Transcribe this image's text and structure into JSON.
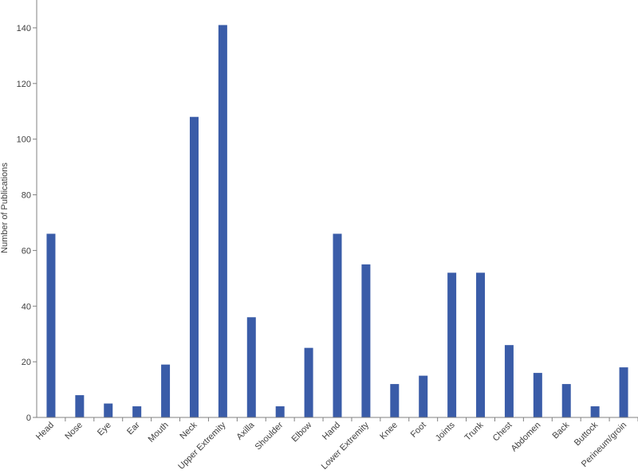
{
  "chart_data": {
    "type": "bar",
    "title": "",
    "xlabel": "",
    "ylabel": "Number of Publications",
    "ylim": [
      0,
      150
    ],
    "yticks": [
      0,
      20,
      40,
      60,
      80,
      100,
      120,
      140
    ],
    "grid": false,
    "legend": "none",
    "bar_color": "#3a5ca8",
    "axis_color": "#808080",
    "categories": [
      "Head",
      "Nose",
      "Eye",
      "Ear",
      "Mouth",
      "Neck",
      "Upper Extremity",
      "Axilla",
      "Shoulder",
      "Elbow",
      "Hand",
      "Lower Extremity",
      "Knee",
      "Foot",
      "Joints",
      "Trunk",
      "Chest",
      "Abdomen",
      "Back",
      "Buttock",
      "Perineum/groin"
    ],
    "values": [
      66,
      8,
      5,
      4,
      19,
      108,
      141,
      36,
      4,
      25,
      66,
      55,
      12,
      15,
      52,
      52,
      26,
      16,
      12,
      4,
      18
    ]
  }
}
